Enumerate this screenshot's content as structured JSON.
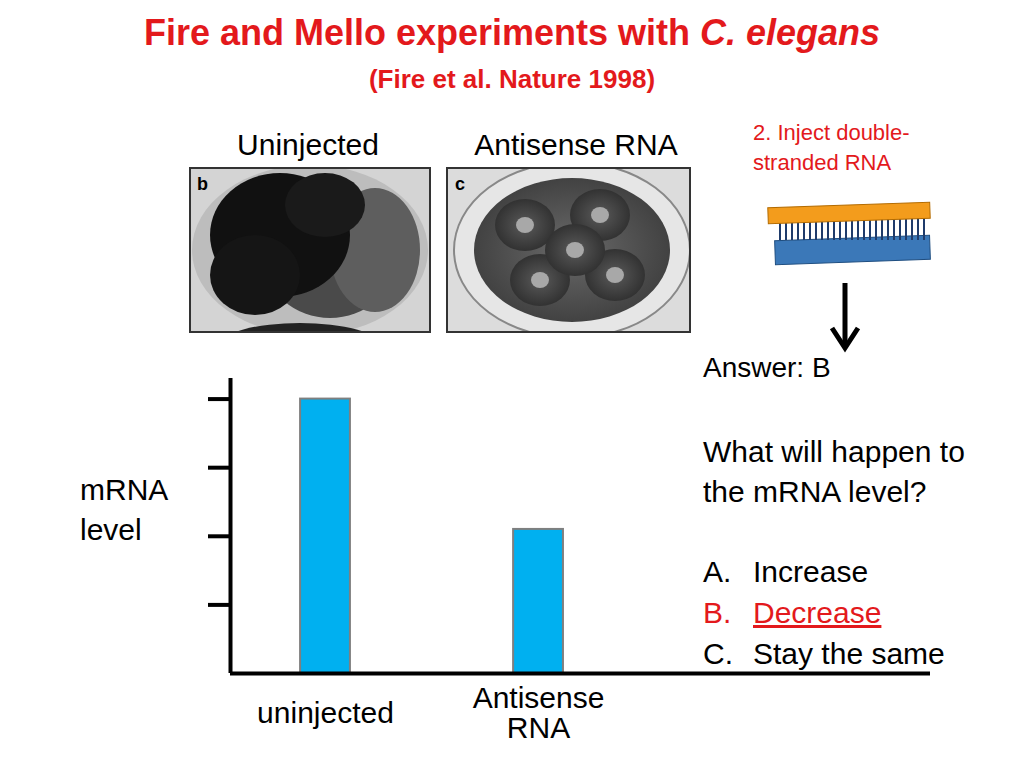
{
  "chart_data": {
    "type": "bar",
    "categories": [
      "uninjected",
      "Antisense RNA"
    ],
    "values": [
      4,
      2.1
    ],
    "color": "#00b0f0",
    "ylabel": [
      "mRNA",
      "level"
    ],
    "ylim": [
      0,
      4.3
    ],
    "yticks": [
      1,
      2,
      3,
      4
    ],
    "grid": false,
    "tick_labels": "x"
  },
  "slide": {
    "title": "Fire and Mello experiments with",
    "title_italic": "C. elegans",
    "subtitle": "(Fire et al. Nature 1998)",
    "panels": [
      {
        "heading": "Uninjected",
        "letter": "b"
      },
      {
        "heading": "Antisense RNA",
        "letter": "c"
      }
    ],
    "step": [
      "2. Inject double-",
      "stranded RNA"
    ],
    "answer": "Answer: B",
    "question": [
      "What will happen to",
      "the mRNA level?"
    ],
    "options": [
      {
        "letter": "A.",
        "text": "Increase",
        "correct": false
      },
      {
        "letter": "B.",
        "text": "Decrease",
        "correct": true
      },
      {
        "letter": "C.",
        "text": "Stay the same",
        "correct": false
      }
    ]
  }
}
